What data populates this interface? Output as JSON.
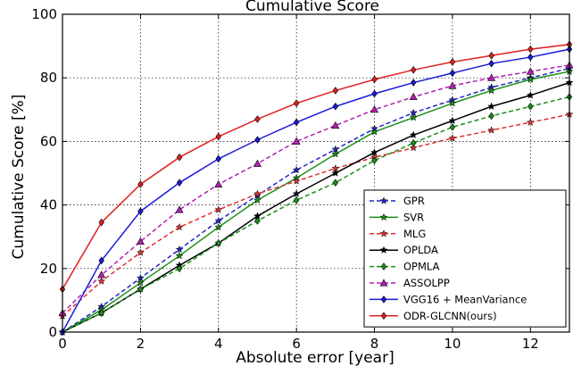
{
  "chart_data": {
    "type": "line",
    "title": "Cumulative Score",
    "xlabel": "Absolute error [year]",
    "ylabel": "Cumulative Score [%]",
    "xlim": [
      0,
      13
    ],
    "ylim": [
      0,
      100
    ],
    "xticks": [
      "0",
      "2",
      "4",
      "6",
      "8",
      "10",
      "12"
    ],
    "yticks": [
      "0",
      "20",
      "40",
      "60",
      "80",
      "100"
    ],
    "grid": true,
    "legend_position": "lower-right",
    "x": [
      0,
      1,
      2,
      3,
      4,
      5,
      6,
      7,
      8,
      9,
      10,
      11,
      12,
      13
    ],
    "series": [
      {
        "name": "GPR",
        "color": "#2424c8",
        "dash": "dashed",
        "marker": "star",
        "values": [
          0,
          8,
          17,
          26,
          35,
          43,
          51,
          57.5,
          64,
          69,
          73,
          77,
          80,
          83
        ]
      },
      {
        "name": "SVR",
        "color": "#1a8f1a",
        "dash": "solid",
        "marker": "star",
        "values": [
          0,
          7,
          15.5,
          24,
          33,
          41.5,
          48.5,
          56,
          63,
          67.5,
          72,
          76,
          79.5,
          82
        ]
      },
      {
        "name": "MLG",
        "color": "#e03030",
        "dash": "dashed",
        "marker": "star",
        "values": [
          5,
          16,
          25,
          33,
          38.5,
          43.5,
          47.5,
          51.5,
          55,
          58,
          61,
          63.5,
          66,
          68.5
        ]
      },
      {
        "name": "OPLDA",
        "color": "#000000",
        "dash": "solid",
        "marker": "star",
        "values": [
          0,
          6,
          13.5,
          21,
          28,
          36.5,
          43.5,
          50,
          56.5,
          62,
          66.5,
          71,
          74.5,
          78.5
        ]
      },
      {
        "name": "OPMLA",
        "color": "#1a8f1a",
        "dash": "dashed",
        "marker": "diamond",
        "values": [
          0,
          6,
          13.5,
          20,
          28,
          35,
          41.5,
          47,
          54,
          59.5,
          64.5,
          68,
          71,
          74
        ]
      },
      {
        "name": "ASSOLPP",
        "color": "#b020b0",
        "dash": "dashed",
        "marker": "triangle",
        "values": [
          6,
          18,
          28.5,
          38.5,
          46.5,
          53,
          60,
          65,
          70,
          74,
          77.5,
          80,
          82,
          84
        ]
      },
      {
        "name": "VGG16 + MeanVariance",
        "color": "#1a1ad8",
        "dash": "solid",
        "marker": "diamond",
        "values": [
          0,
          22.5,
          38,
          47,
          54.5,
          60.5,
          66,
          71,
          75,
          78.5,
          81.5,
          84.5,
          86.5,
          89
        ]
      },
      {
        "name": "ODR-GLCNN(ours)",
        "color": "#e02020",
        "dash": "solid",
        "marker": "diamond",
        "values": [
          13.5,
          34.5,
          46.5,
          55,
          61.5,
          67,
          72,
          76,
          79.5,
          82.5,
          85,
          87,
          89,
          90.5
        ]
      }
    ]
  }
}
